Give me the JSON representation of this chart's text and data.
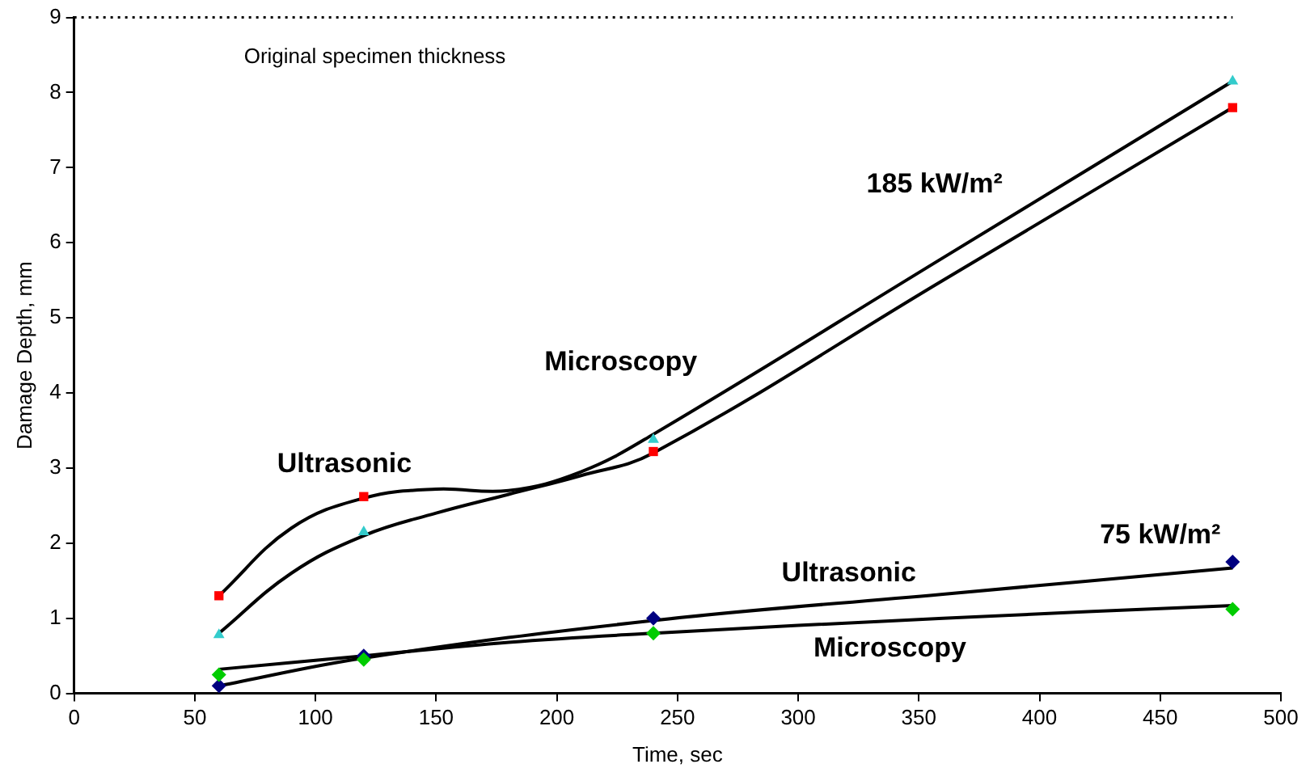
{
  "chart_data": {
    "type": "scatter",
    "xlabel": "Time, sec",
    "ylabel": "Damage Depth, mm",
    "xlim": [
      0,
      500
    ],
    "xticks": [
      0,
      50,
      100,
      150,
      200,
      250,
      300,
      350,
      400,
      450,
      500
    ],
    "ylim": [
      0,
      9
    ],
    "yticks": [
      0,
      1,
      2,
      3,
      4,
      5,
      6,
      7,
      8,
      9
    ],
    "grid": false,
    "legend": false,
    "series": [
      {
        "color": "#ff0000",
        "marker": "square",
        "x": [
          60,
          120,
          240,
          480
        ],
        "values": [
          1.3,
          2.62,
          3.22,
          7.8
        ]
      },
      {
        "color": "#33cccc",
        "marker": "triangle",
        "x": [
          60,
          120,
          240,
          480
        ],
        "values": [
          0.78,
          2.15,
          3.38,
          8.15
        ]
      },
      {
        "color": "#000080",
        "marker": "diamond",
        "x": [
          60,
          120,
          240,
          480
        ],
        "values": [
          0.1,
          0.5,
          1.0,
          1.75
        ]
      },
      {
        "color": "#00cc00",
        "marker": "diamond",
        "x": [
          60,
          120,
          240,
          480
        ],
        "values": [
          0.25,
          0.45,
          0.8,
          1.12
        ]
      },
      {
        "type": "line",
        "color": "#000000",
        "marker": "none",
        "x": [
          60,
          90,
          120,
          150,
          180,
          210,
          240,
          360,
          480
        ],
        "values": [
          1.3,
          2.2,
          2.6,
          2.72,
          2.7,
          2.95,
          3.45,
          5.8,
          8.15
        ]
      },
      {
        "type": "line",
        "color": "#000000",
        "marker": "none",
        "x": [
          60,
          90,
          120,
          150,
          180,
          210,
          240,
          360,
          480
        ],
        "values": [
          0.8,
          1.6,
          2.1,
          2.4,
          2.65,
          2.9,
          3.2,
          5.5,
          7.8
        ]
      },
      {
        "type": "line",
        "color": "#000000",
        "marker": "none",
        "x": [
          60,
          120,
          240,
          360,
          480
        ],
        "values": [
          0.1,
          0.47,
          0.97,
          1.32,
          1.67
        ]
      },
      {
        "type": "line",
        "color": "#000000",
        "marker": "none",
        "x": [
          60,
          120,
          180,
          240,
          360,
          480
        ],
        "values": [
          0.32,
          0.5,
          0.68,
          0.8,
          1.0,
          1.17
        ]
      }
    ],
    "ref_lines": [
      {
        "axis": "y",
        "value": 9,
        "label": "Original specimen thickness",
        "color": "#000000",
        "line_style": "dotted"
      }
    ],
    "annotations": [
      "185 kW/m²",
      "Microscopy",
      "Ultrasonic",
      "75 kW/m²",
      "Ultrasonic",
      "Microscopy"
    ]
  }
}
